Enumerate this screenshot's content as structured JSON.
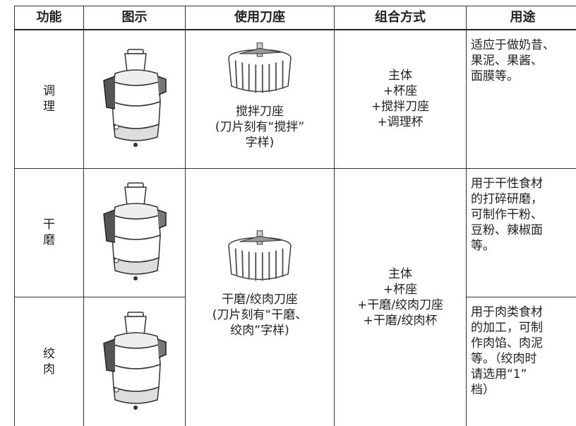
{
  "header": [
    "功能",
    "图示",
    "使用刀座",
    "组合方式",
    "用途"
  ],
  "rows": [
    {
      "function": [
        "调",
        "理"
      ],
      "blade": [
        "搅拌刀座",
        "(刀片刻有“搅拌”",
        "字样)"
      ],
      "combination": [
        "主体",
        "+杯座",
        "+搅拌刀座",
        "+调理杯"
      ],
      "usage": [
        "适应于做奶昔、",
        "果泥、果酱、",
        "面膜等。"
      ]
    },
    {
      "function": [
        "干",
        "磨"
      ],
      "blade": [
        "干磨/绞肉刀座",
        "(刀片刻有“干磨、",
        "绞肉”字样)"
      ],
      "combination": [
        "主体",
        "+杯座",
        "+干磨/绞肉刀座",
        "+干磨/绞肉杯"
      ],
      "usage": [
        "用于干性食材",
        "的打碎研磨，",
        "可制作干粉、",
        "豆粉、辣椒面",
        "等。"
      ]
    },
    {
      "function": [
        "绞",
        "肉"
      ],
      "usage": [
        "用于肉类食材",
        "的加工，可制",
        "作肉馅、肉泥",
        "等。（绞肉时",
        "请选用“1”",
        "档）"
      ]
    }
  ]
}
